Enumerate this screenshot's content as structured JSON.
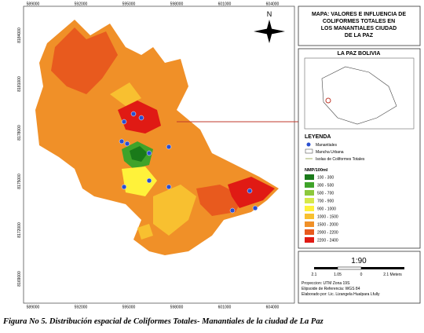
{
  "map": {
    "north": "N",
    "x_coords": [
      "589000",
      "592000",
      "595000",
      "598000",
      "601000",
      "604000"
    ],
    "y_coords": [
      "8184000",
      "8181000",
      "8178000",
      "8175000",
      "8172000",
      "8169000"
    ]
  },
  "panel": {
    "title": "MAPA: VALORES E INFLUENCIA DE COLIFORMES TOTALES EN LOS MANANTIALES CIUDAD DE LA PAZ",
    "inset_title": "LA PAZ BOLIVIA",
    "legend_title": "LEYENDA",
    "legend_items": [
      "Manantiales",
      "Mancha Urbana",
      "Isolas de Coliformes Totales"
    ],
    "class_title": "NMP/100ml",
    "classes": [
      {
        "label": "100 - 300",
        "color": "#1a7a1a"
      },
      {
        "label": "300 - 500",
        "color": "#3fa32a"
      },
      {
        "label": "500 - 700",
        "color": "#8cc83c"
      },
      {
        "label": "700 - 900",
        "color": "#d6e84a"
      },
      {
        "label": "900 - 1000",
        "color": "#fff23a"
      },
      {
        "label": "1000 - 1500",
        "color": "#f8c030"
      },
      {
        "label": "1500 - 2000",
        "color": "#f09028"
      },
      {
        "label": "2000 - 2200",
        "color": "#e85a1e"
      },
      {
        "label": "2200 - 2400",
        "color": "#e01a14"
      }
    ],
    "scale": "1:90",
    "scale_ticks": [
      "2.1",
      "1.05",
      "0",
      "2.1 Meters"
    ],
    "credits": [
      "Proyeccion: UTM Zona 19S",
      "Elipsoide de Referencia: WGS 84",
      "Elaborado por: Lic. Lizangela Hualpara Lfully"
    ]
  },
  "caption": "Figura No 5.  Distribución espacial de Coliformes Totales- Manantiales de la ciudad de La Paz"
}
